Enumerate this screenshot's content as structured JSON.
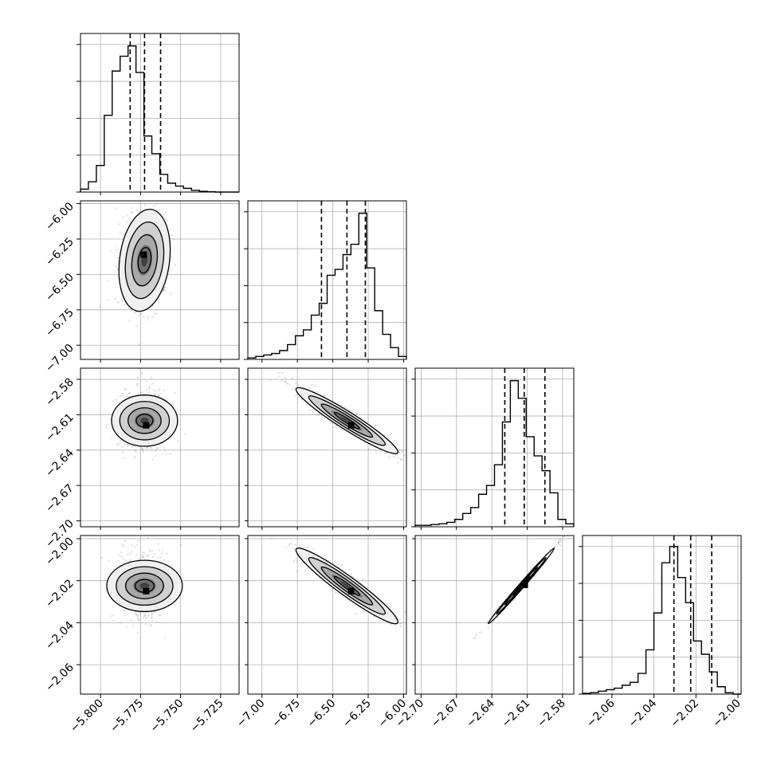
{
  "colors": {
    "hist": "#000000",
    "contour": "#000000",
    "points": "#9a9a9a",
    "grid": "#b0b0b0",
    "frame": "#000000"
  },
  "chart_data": {
    "type": "corner",
    "parameters": [
      {
        "index": 0,
        "range": [
          -5.8125,
          -5.7135
        ],
        "ticks": [
          -5.8,
          -5.775,
          -5.75,
          -5.725
        ],
        "tick_labels": [
          "−5.800",
          "−5.775",
          "−5.750",
          "−5.725"
        ],
        "quantiles": [
          -5.7815,
          -5.7725,
          -5.7625
        ],
        "hist": [
          0.02,
          0.07,
          0.18,
          0.52,
          0.82,
          0.92,
          0.99,
          0.81,
          0.38,
          0.26,
          0.12,
          0.06,
          0.04,
          0.025,
          0.012,
          0.005,
          0.002,
          0,
          0,
          0
        ]
      },
      {
        "index": 1,
        "range": [
          -7.1,
          -5.98
        ],
        "ticks": [
          -7.0,
          -6.75,
          -6.5,
          -6.25,
          -6.0
        ],
        "tick_labels": [
          "−7.00",
          "−6.75",
          "−6.50",
          "−6.25",
          "−6.00"
        ],
        "quantiles": [
          -6.58,
          -6.4,
          -6.27
        ],
        "hist": [
          0.01,
          0.02,
          0.03,
          0.04,
          0.06,
          0.1,
          0.16,
          0.2,
          0.3,
          0.38,
          0.57,
          0.61,
          0.71,
          0.78,
          0.99,
          0.62,
          0.33,
          0.17,
          0.08,
          0.02
        ]
      },
      {
        "index": 2,
        "range": [
          -2.705,
          -2.5705
        ],
        "ticks": [
          -2.7,
          -2.67,
          -2.64,
          -2.61,
          -2.58
        ],
        "tick_labels": [
          "−2.70",
          "−2.67",
          "−2.64",
          "−2.61",
          "−2.58"
        ],
        "quantiles": [
          -2.629,
          -2.6125,
          -2.595
        ],
        "hist": [
          0.01,
          0.01,
          0.015,
          0.02,
          0.03,
          0.05,
          0.09,
          0.13,
          0.22,
          0.28,
          0.42,
          0.71,
          0.99,
          0.87,
          0.61,
          0.48,
          0.38,
          0.23,
          0.05,
          0.02
        ]
      },
      {
        "index": 3,
        "range": [
          -2.074,
          -1.9985
        ],
        "ticks": [
          -2.06,
          -2.04,
          -2.02,
          -2.0
        ],
        "tick_labels": [
          "−2.06",
          "−2.04",
          "−2.02",
          "−2.00"
        ],
        "quantiles": [
          -2.0305,
          -2.0225,
          -2.0125
        ],
        "hist": [
          0.005,
          0.01,
          0.02,
          0.03,
          0.04,
          0.06,
          0.08,
          0.14,
          0.3,
          0.55,
          0.89,
          1.0,
          0.79,
          0.62,
          0.36,
          0.27,
          0.15,
          0.05,
          0.01,
          0
        ]
      }
    ],
    "hist_ticks_frac": [
      0.25,
      0.5,
      0.75,
      1.0
    ],
    "pairs": [
      {
        "x": 0,
        "y": 1,
        "mean": [
          -5.7725,
          -6.4
        ],
        "sd": [
          0.008,
          0.18
        ],
        "corr": 0.2,
        "peak": [
          -5.773,
          -6.36
        ]
      },
      {
        "x": 0,
        "y": 2,
        "mean": [
          -5.7725,
          -2.615
        ],
        "sd": [
          0.008,
          0.014
        ],
        "corr": 0.0,
        "peak": [
          -5.7715,
          -2.619
        ]
      },
      {
        "x": 1,
        "y": 2,
        "mean": [
          -6.4,
          -2.615
        ],
        "sd": [
          0.18,
          0.014
        ],
        "corr": -0.95,
        "peak": [
          -6.37,
          -2.619
        ]
      },
      {
        "x": 0,
        "y": 3,
        "mean": [
          -5.7725,
          -2.0225
        ],
        "sd": [
          0.008,
          0.009
        ],
        "corr": 0.0,
        "peak": [
          -5.7715,
          -2.025
        ]
      },
      {
        "x": 1,
        "y": 3,
        "mean": [
          -6.4,
          -2.0225
        ],
        "sd": [
          0.18,
          0.009
        ],
        "corr": -0.95,
        "peak": [
          -6.37,
          -2.025
        ]
      },
      {
        "x": 2,
        "y": 3,
        "mean": [
          -2.615,
          -2.0225
        ],
        "sd": [
          0.014,
          0.009
        ],
        "corr": 0.995,
        "peak": [
          -2.612,
          -2.022
        ]
      }
    ],
    "grid": true,
    "quantile_levels": [
      0.16,
      0.5,
      0.84
    ]
  }
}
